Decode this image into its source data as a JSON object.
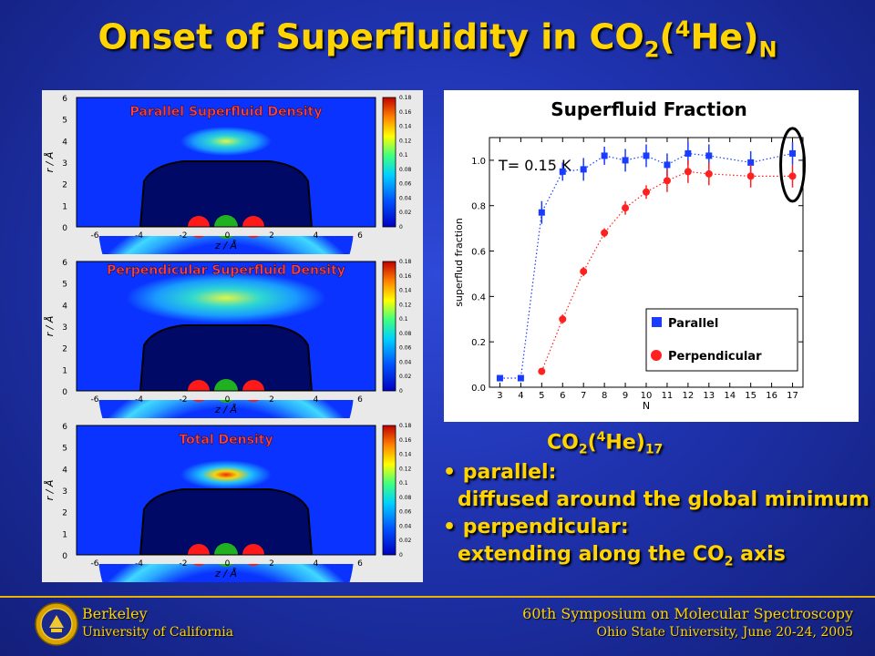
{
  "title": {
    "main": "Onset of Superfluidity in CO",
    "sub1": "2",
    "paren_open": "(",
    "sup": "4",
    "rest": "He)",
    "sub2": "N"
  },
  "density_plots": [
    {
      "title": "Parallel Superfluid Density",
      "ylabel": "r / Å",
      "xlabel": "z / Å",
      "yticks": [
        "0",
        "1",
        "2",
        "3",
        "4",
        "5",
        "6"
      ],
      "xticks": [
        "-6",
        "-4",
        "-2",
        "0",
        "2",
        "4",
        "6"
      ],
      "colorbar": [
        "0",
        "0.02",
        "0.04",
        "0.06",
        "0.08",
        "0.1",
        "0.12",
        "0.14",
        "0.16",
        "0.18"
      ]
    },
    {
      "title": "Perpendicular Superfluid Density",
      "ylabel": "r / Å",
      "xlabel": "z / Å",
      "yticks": [
        "0",
        "1",
        "2",
        "3",
        "4",
        "5",
        "6"
      ],
      "xticks": [
        "-6",
        "-4",
        "-2",
        "0",
        "2",
        "4",
        "6"
      ],
      "colorbar": [
        "0",
        "0.02",
        "0.04",
        "0.06",
        "0.08",
        "0.1",
        "0.12",
        "0.14",
        "0.16",
        "0.18"
      ]
    },
    {
      "title": "Total Density",
      "ylabel": "r / Å",
      "xlabel": "z / Å",
      "yticks": [
        "0",
        "1",
        "2",
        "3",
        "4",
        "5",
        "6"
      ],
      "xticks": [
        "-6",
        "-4",
        "-2",
        "0",
        "2",
        "4",
        "6"
      ],
      "colorbar": [
        "0",
        "0.02",
        "0.04",
        "0.06",
        "0.08",
        "0.1",
        "0.12",
        "0.14",
        "0.16",
        "0.18"
      ]
    }
  ],
  "chart_data": {
    "type": "scatter",
    "title": "Superfluid Fraction",
    "annotation": "T= 0.15 K",
    "xlabel": "N",
    "ylabel": "superflud fraction",
    "x": [
      3,
      4,
      5,
      6,
      7,
      8,
      9,
      10,
      11,
      12,
      13,
      14,
      15,
      16,
      17
    ],
    "xticks": [
      "3",
      "4",
      "5",
      "6",
      "7",
      "8",
      "9",
      "10",
      "11",
      "12",
      "13",
      "14",
      "15",
      "16",
      "17"
    ],
    "yticks": [
      "0.0",
      "0.2",
      "0.4",
      "0.6",
      "0.8",
      "1.0"
    ],
    "xlim": [
      2.5,
      17.5
    ],
    "ylim": [
      0,
      1.1
    ],
    "series": [
      {
        "name": "Parallel",
        "color": "#1a3cff",
        "marker": "square",
        "x": [
          3,
          4,
          5,
          6,
          7,
          8,
          9,
          10,
          11,
          13,
          12,
          15,
          17
        ],
        "values": [
          0.04,
          0.04,
          0.77,
          0.95,
          0.96,
          1.02,
          1.0,
          1.02,
          0.98,
          1.02,
          1.03,
          0.99,
          1.03
        ],
        "err": [
          0.01,
          0.01,
          0.05,
          0.04,
          0.05,
          0.04,
          0.05,
          0.05,
          0.05,
          0.05,
          0.05,
          0.05,
          0.05
        ]
      },
      {
        "name": "Perpendicular",
        "color": "#ff2020",
        "marker": "circle",
        "x": [
          5,
          6,
          7,
          8,
          9,
          10,
          11,
          12,
          13,
          15,
          17
        ],
        "values": [
          0.07,
          0.3,
          0.51,
          0.68,
          0.79,
          0.86,
          0.91,
          0.95,
          0.94,
          0.93,
          0.93
        ],
        "err": [
          0.01,
          0.02,
          0.02,
          0.02,
          0.03,
          0.03,
          0.05,
          0.05,
          0.05,
          0.05,
          0.05
        ]
      }
    ],
    "legend": "bottom-right"
  },
  "subject": {
    "main": "CO",
    "sub1": "2",
    "paren": "(",
    "sup": "4",
    "rest": "He)",
    "sub2": "17"
  },
  "bullets": [
    {
      "label": "parallel:",
      "detail": "diffused around the global minimum"
    },
    {
      "label": "perpendicular:",
      "detail": "extending along the CO",
      "detail_sub": "2",
      "detail_end": " axis"
    }
  ],
  "footer": {
    "left_line1": "Berkeley",
    "left_line2": "University of California",
    "right_line1": "60th Symposium on Molecular Spectroscopy",
    "right_line2": "Ohio State University, June 20-24, 2005"
  }
}
